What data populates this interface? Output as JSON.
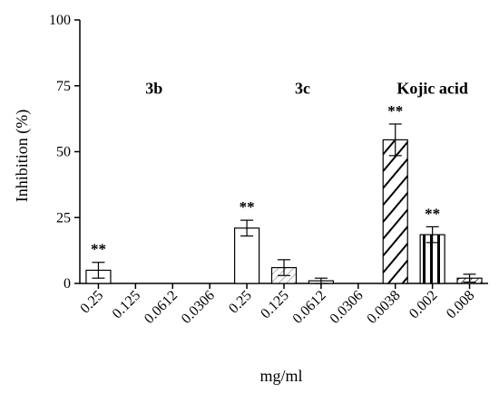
{
  "chart_data": {
    "type": "bar",
    "ylabel": "Inhibition (%)",
    "xlabel": "mg/ml",
    "ylim": [
      0,
      100
    ],
    "yticks": [
      0,
      25,
      50,
      75,
      100
    ],
    "grid": false,
    "groups": [
      {
        "label": "3b",
        "start": 0,
        "end": 3
      },
      {
        "label": "3c",
        "start": 4,
        "end": 7
      },
      {
        "label": "Kojic acid",
        "start": 8,
        "end": 10
      }
    ],
    "categories": [
      "0.25",
      "0.125",
      "0.0612",
      "0.0306",
      "0.25",
      "0.125",
      "0.0612",
      "0.0306",
      "0.0038",
      "0.002",
      "0.008"
    ],
    "values": [
      5,
      0,
      0,
      0,
      21,
      6,
      1,
      0,
      54.5,
      18.5,
      2
    ],
    "errors": [
      3,
      0,
      0,
      0,
      3,
      3,
      1,
      0,
      6,
      3,
      1.5
    ],
    "fills": [
      "white",
      "none",
      "none",
      "none",
      "white",
      "light-hatch",
      "white",
      "none",
      "bold-diagonal",
      "vertical-stripes",
      "diagonal-hatch"
    ],
    "significance": [
      "**",
      "",
      "",
      "",
      "**",
      "",
      "",
      "",
      "**",
      "**",
      ""
    ]
  }
}
